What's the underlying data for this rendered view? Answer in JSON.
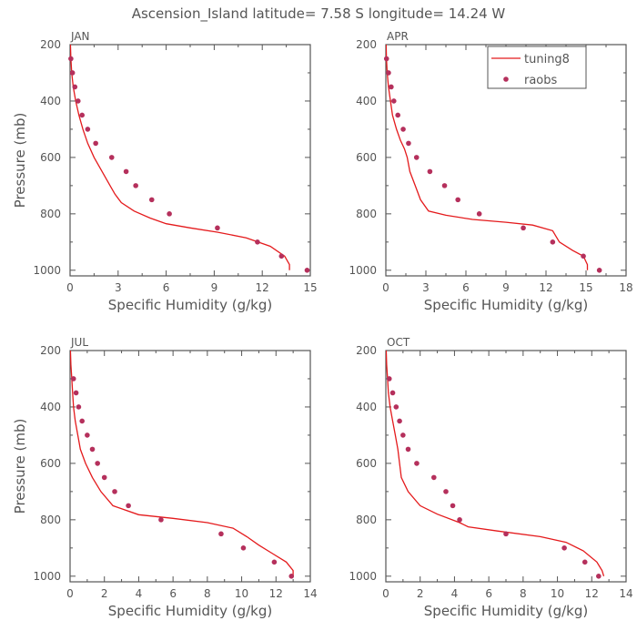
{
  "figure": {
    "title": "Ascension_Island  latitude= 7.58 S longitude= 14.24 W",
    "line_color": "#e41a1c",
    "dot_color": "#b5305c"
  },
  "chart_data": [
    {
      "type": "line",
      "panel_label": "JAN",
      "xlabel": "Specific Humidity (g/kg)",
      "ylabel": "Pressure (mb)",
      "xlim": [
        0,
        15
      ],
      "ylim": [
        200,
        1020
      ],
      "y_inverted": true,
      "xticks": [
        0,
        3,
        6,
        9,
        12,
        15
      ],
      "yticks": [
        200,
        400,
        600,
        800,
        1000
      ],
      "legend": null,
      "series": [
        {
          "name": "tuning8",
          "kind": "line",
          "color": "#e41a1c",
          "x": [
            0.02,
            0.05,
            0.1,
            0.2,
            0.35,
            0.55,
            0.8,
            1.1,
            1.5,
            2.0,
            2.5,
            2.8,
            3.2,
            4.0,
            5.0,
            6.0,
            7.5,
            9.2,
            11.0,
            12.5,
            13.4,
            13.7,
            13.7
          ],
          "y": [
            200,
            250,
            300,
            350,
            400,
            450,
            500,
            550,
            600,
            650,
            700,
            730,
            760,
            790,
            815,
            835,
            850,
            865,
            885,
            915,
            950,
            980,
            1000
          ]
        },
        {
          "name": "raobs",
          "kind": "scatter",
          "color": "#b5305c",
          "x": [
            0.05,
            0.15,
            0.3,
            0.5,
            0.75,
            1.1,
            1.6,
            2.6,
            3.5,
            4.1,
            5.1,
            6.2,
            9.2,
            11.7,
            13.2,
            14.8
          ],
          "y": [
            250,
            300,
            350,
            400,
            450,
            500,
            550,
            600,
            650,
            700,
            750,
            800,
            850,
            900,
            950,
            1000
          ]
        }
      ]
    },
    {
      "type": "line",
      "panel_label": "APR",
      "xlabel": "Specific Humidity (g/kg)",
      "ylabel": "",
      "xlim": [
        0,
        18
      ],
      "ylim": [
        200,
        1020
      ],
      "y_inverted": true,
      "xticks": [
        0,
        3,
        6,
        9,
        12,
        15,
        18
      ],
      "yticks": [
        200,
        400,
        600,
        800,
        1000
      ],
      "legend": "top-right",
      "series": [
        {
          "name": "tuning8",
          "kind": "line",
          "color": "#e41a1c",
          "x": [
            0.02,
            0.05,
            0.1,
            0.2,
            0.35,
            0.5,
            0.8,
            1.1,
            1.4,
            1.6,
            1.8,
            2.2,
            2.6,
            3.2,
            4.5,
            6.5,
            9.0,
            11.0,
            12.5,
            13.0,
            14.0,
            14.8,
            15.1,
            15.1
          ],
          "y": [
            200,
            250,
            300,
            350,
            400,
            450,
            500,
            540,
            570,
            600,
            650,
            700,
            750,
            790,
            805,
            820,
            830,
            840,
            860,
            900,
            930,
            950,
            980,
            1000
          ]
        },
        {
          "name": "raobs",
          "kind": "scatter",
          "color": "#b5305c",
          "x": [
            0.05,
            0.2,
            0.4,
            0.6,
            0.9,
            1.3,
            1.7,
            2.3,
            3.3,
            4.4,
            5.4,
            7.0,
            10.3,
            12.5,
            14.8,
            16.0
          ],
          "y": [
            250,
            300,
            350,
            400,
            450,
            500,
            550,
            600,
            650,
            700,
            750,
            800,
            850,
            900,
            950,
            1000
          ]
        }
      ]
    },
    {
      "type": "line",
      "panel_label": "JUL",
      "xlabel": "Specific Humidity (g/kg)",
      "ylabel": "Pressure (mb)",
      "xlim": [
        0,
        14
      ],
      "ylim": [
        200,
        1020
      ],
      "y_inverted": true,
      "xticks": [
        0,
        2,
        4,
        6,
        8,
        10,
        12,
        14
      ],
      "yticks": [
        200,
        400,
        600,
        800,
        1000
      ],
      "legend": null,
      "series": [
        {
          "name": "tuning8",
          "kind": "line",
          "color": "#e41a1c",
          "x": [
            0.02,
            0.05,
            0.1,
            0.15,
            0.2,
            0.3,
            0.45,
            0.6,
            0.9,
            1.3,
            1.8,
            2.5,
            4.0,
            6.0,
            8.0,
            9.5,
            10.3,
            11.0,
            11.8,
            12.6,
            13.0,
            13.0
          ],
          "y": [
            200,
            250,
            300,
            350,
            400,
            450,
            500,
            550,
            600,
            650,
            700,
            750,
            782,
            795,
            810,
            830,
            860,
            890,
            920,
            950,
            980,
            1000
          ]
        },
        {
          "name": "raobs",
          "kind": "scatter",
          "color": "#b5305c",
          "x": [
            0.2,
            0.35,
            0.5,
            0.7,
            1.0,
            1.3,
            1.6,
            2.0,
            2.6,
            3.4,
            5.3,
            8.8,
            10.1,
            11.9,
            12.9
          ],
          "y": [
            300,
            350,
            400,
            450,
            500,
            550,
            600,
            650,
            700,
            750,
            800,
            850,
            900,
            950,
            1000
          ]
        }
      ]
    },
    {
      "type": "line",
      "panel_label": "OCT",
      "xlabel": "Specific Humidity (g/kg)",
      "ylabel": "",
      "xlim": [
        0,
        14
      ],
      "ylim": [
        200,
        1020
      ],
      "y_inverted": true,
      "xticks": [
        0,
        2,
        4,
        6,
        8,
        10,
        12,
        14
      ],
      "yticks": [
        200,
        400,
        600,
        800,
        1000
      ],
      "legend": null,
      "series": [
        {
          "name": "tuning8",
          "kind": "line",
          "color": "#e41a1c",
          "x": [
            0.02,
            0.05,
            0.1,
            0.15,
            0.25,
            0.4,
            0.55,
            0.7,
            0.8,
            0.9,
            1.3,
            2.0,
            3.0,
            4.3,
            4.8,
            6.5,
            9.0,
            10.5,
            11.5,
            12.3,
            12.6,
            12.7
          ],
          "y": [
            200,
            250,
            300,
            350,
            400,
            450,
            500,
            550,
            600,
            650,
            700,
            750,
            780,
            810,
            825,
            840,
            860,
            880,
            910,
            950,
            980,
            1000
          ]
        },
        {
          "name": "raobs",
          "kind": "scatter",
          "color": "#b5305c",
          "x": [
            0.2,
            0.4,
            0.6,
            0.8,
            1.0,
            1.3,
            1.8,
            2.8,
            3.5,
            3.9,
            4.3,
            7.0,
            10.4,
            11.6,
            12.4
          ],
          "y": [
            300,
            350,
            400,
            450,
            500,
            550,
            600,
            650,
            700,
            750,
            800,
            850,
            900,
            950,
            1000
          ]
        }
      ]
    }
  ]
}
